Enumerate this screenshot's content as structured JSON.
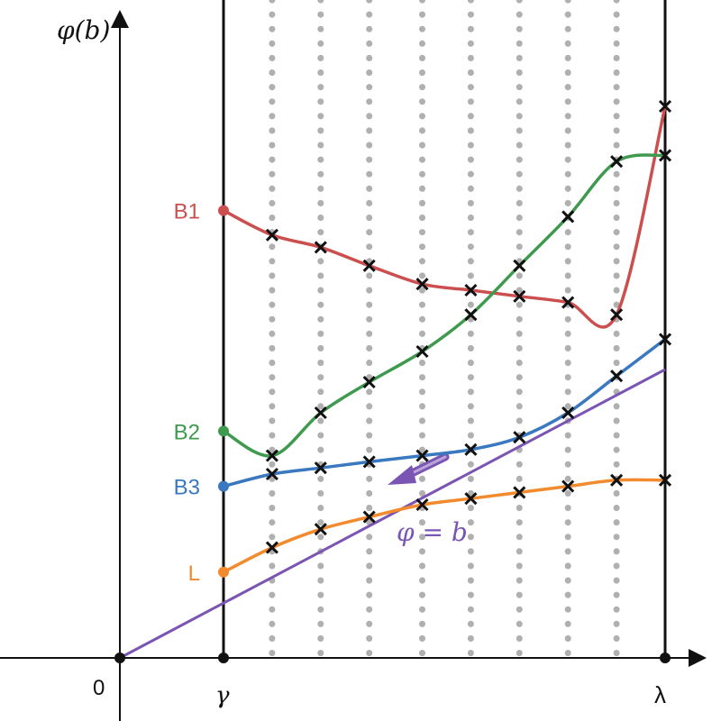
{
  "axes": {
    "y_label": "φ(b)",
    "origin_label": "0",
    "gamma_label": "γ",
    "lambda_label": "λ"
  },
  "curves": [
    {
      "id": "b1",
      "label": "B1",
      "color": "#cc4f4f",
      "start": [
        0,
        0.73
      ],
      "end": [
        1,
        0.9
      ],
      "points": [
        [
          0.11,
          0.69
        ],
        [
          0.22,
          0.67
        ],
        [
          0.33,
          0.64
        ],
        [
          0.45,
          0.61
        ],
        [
          0.56,
          0.6
        ],
        [
          0.67,
          0.59
        ],
        [
          0.78,
          0.58
        ],
        [
          0.89,
          0.56
        ]
      ]
    },
    {
      "id": "b2",
      "label": "B2",
      "color": "#3f9a4f",
      "start": [
        0,
        0.37
      ],
      "end": [
        1,
        0.82
      ],
      "points": [
        [
          0.11,
          0.33
        ],
        [
          0.22,
          0.4
        ],
        [
          0.33,
          0.45
        ],
        [
          0.45,
          0.5
        ],
        [
          0.56,
          0.56
        ],
        [
          0.67,
          0.64
        ],
        [
          0.78,
          0.72
        ],
        [
          0.89,
          0.81
        ]
      ]
    },
    {
      "id": "b3",
      "label": "B3",
      "color": "#3a78bf",
      "start": [
        0,
        0.28
      ],
      "end": [
        1,
        0.52
      ],
      "points": [
        [
          0.11,
          0.3
        ],
        [
          0.22,
          0.31
        ],
        [
          0.33,
          0.32
        ],
        [
          0.45,
          0.33
        ],
        [
          0.56,
          0.34
        ],
        [
          0.67,
          0.36
        ],
        [
          0.78,
          0.4
        ],
        [
          0.89,
          0.46
        ]
      ]
    },
    {
      "id": "l",
      "label": "L",
      "color": "#f28a2e",
      "start": [
        0,
        0.14
      ],
      "end": [
        1,
        0.29
      ],
      "points": [
        [
          0.11,
          0.18
        ],
        [
          0.22,
          0.21
        ],
        [
          0.33,
          0.23
        ],
        [
          0.45,
          0.25
        ],
        [
          0.56,
          0.26
        ],
        [
          0.67,
          0.27
        ],
        [
          0.78,
          0.28
        ],
        [
          0.89,
          0.29
        ]
      ]
    }
  ],
  "diagonal": {
    "label": "φ = b",
    "color": "#7a55b3"
  },
  "grid_color": "#b0b0b0",
  "axis_color": "#111111"
}
